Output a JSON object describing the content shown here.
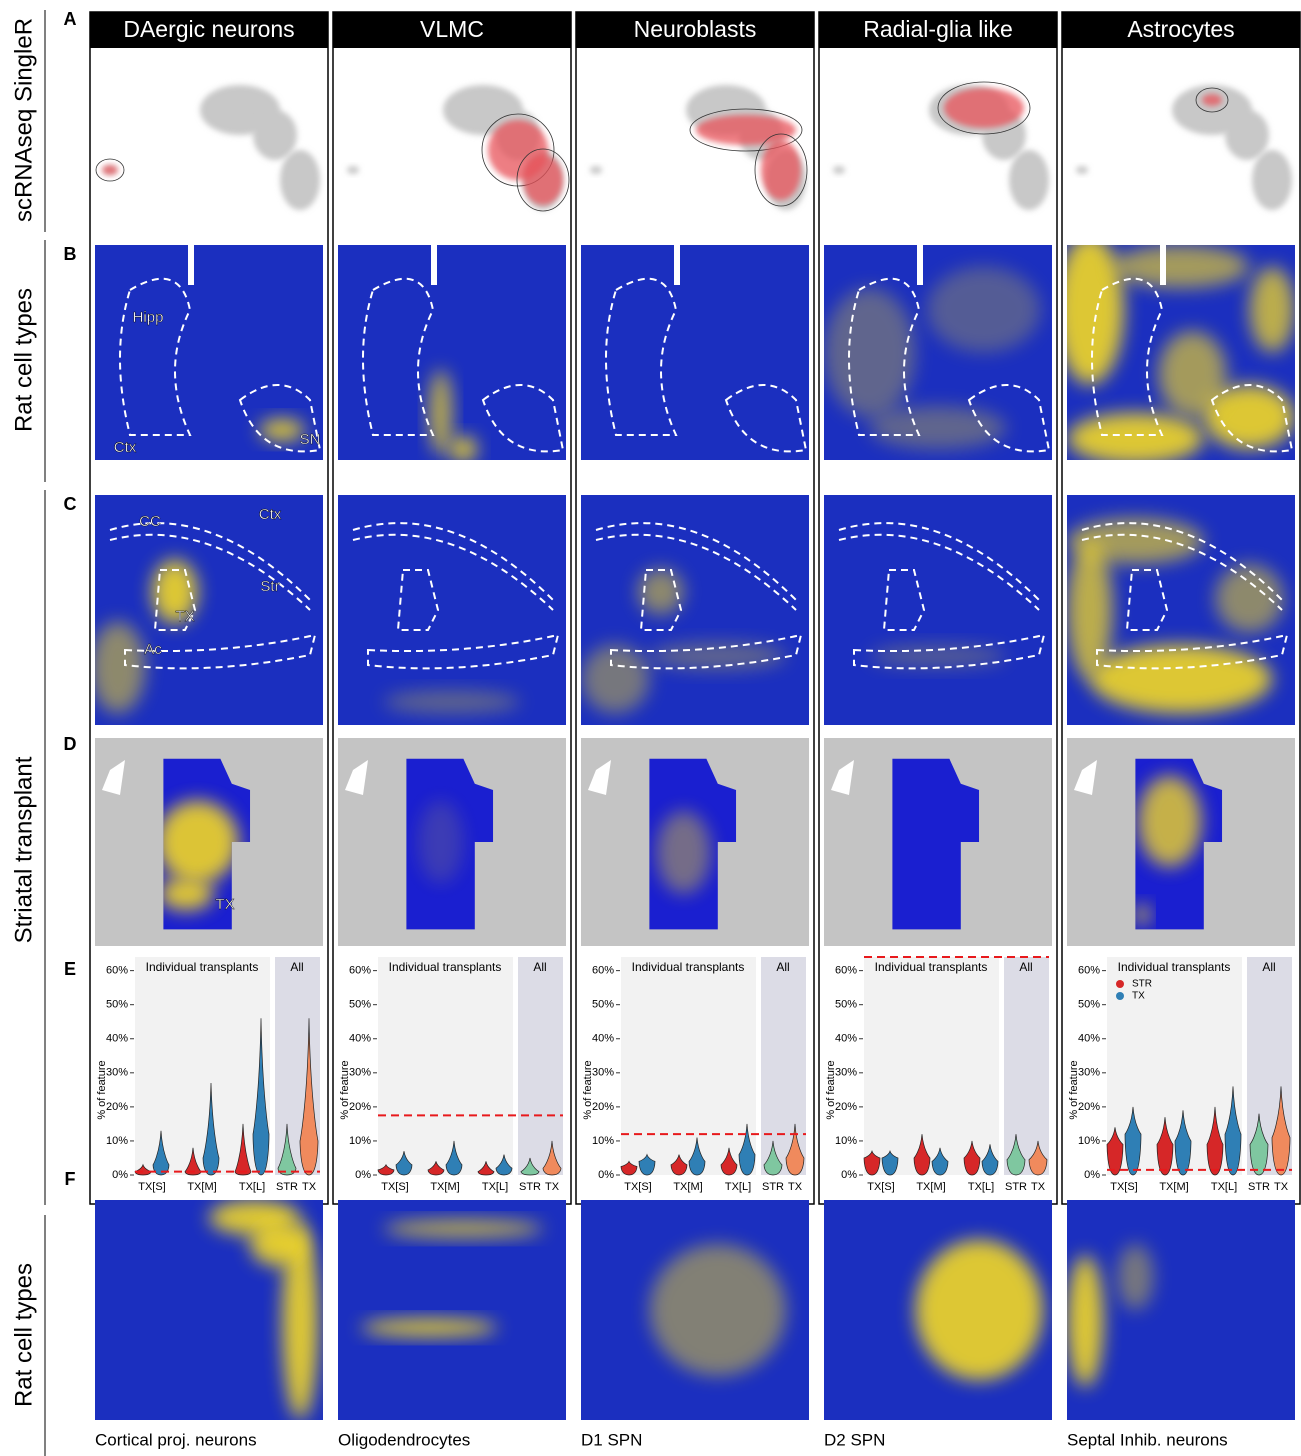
{
  "panels": {
    "columns": [
      "DAergic neurons",
      "VLMC",
      "Neuroblasts",
      "Radial-glia like",
      "Astrocytes"
    ],
    "letters": [
      "A",
      "B",
      "C",
      "D",
      "E",
      "F"
    ],
    "row_labels": [
      "scRNAseq SingleR",
      "Rat cell types",
      "Striatal transplant",
      "Rat cell types"
    ],
    "annotations_b": [
      "Hipp",
      "Ctx",
      "SN"
    ],
    "annotations_c": [
      "CC",
      "Ctx",
      "Str",
      "TX",
      "Ac"
    ],
    "annotation_d": "TX",
    "f_labels": [
      "Cortical proj. neurons",
      "Oligodendrocytes",
      "D1 SPN",
      "D2 SPN",
      "Septal Inhib. neurons"
    ]
  },
  "chart_data": [
    {
      "type": "violin",
      "ylabel": "% of feature",
      "group_label": "Individual transplants",
      "all_label": "All",
      "legend": false,
      "categories": [
        "TX[S]",
        "TX[M]",
        "TX[L]"
      ],
      "series": [
        {
          "name": "STR",
          "color": "#d62728",
          "values": [
            1,
            1,
            1
          ],
          "max": [
            3,
            8,
            15
          ]
        },
        {
          "name": "TX",
          "color": "#2f7fb5",
          "values": [
            3,
            5,
            12
          ],
          "max": [
            13,
            27,
            46
          ]
        }
      ],
      "all_categories": [
        "STR",
        "TX"
      ],
      "all_colors": [
        "#7fc7a0",
        "#f08a5d"
      ],
      "all_values": [
        2,
        10
      ],
      "all_max": [
        15,
        46
      ],
      "threshold": 1,
      "ylim": [
        0,
        64
      ],
      "yticks": [
        {
          "value": 0,
          "label": "0%"
        },
        {
          "value": 10,
          "label": "10%"
        },
        {
          "value": 20,
          "label": "20%"
        },
        {
          "value": 30,
          "label": "30%"
        },
        {
          "value": 40,
          "label": "40%"
        },
        {
          "value": 50,
          "label": "50%"
        },
        {
          "value": 60,
          "label": "60%"
        }
      ]
    },
    {
      "type": "violin",
      "ylabel": "% of feature",
      "group_label": "Individual transplants",
      "all_label": "All",
      "legend": false,
      "categories": [
        "TX[S]",
        "TX[M]",
        "TX[L]"
      ],
      "series": [
        {
          "name": "STR",
          "color": "#d62728",
          "values": [
            1.5,
            1.5,
            1
          ],
          "max": [
            3,
            4,
            4
          ]
        },
        {
          "name": "TX",
          "color": "#2f7fb5",
          "values": [
            3,
            3,
            2
          ],
          "max": [
            7,
            10,
            6
          ]
        }
      ],
      "all_categories": [
        "STR",
        "TX"
      ],
      "all_colors": [
        "#7fc7a0",
        "#f08a5d"
      ],
      "all_values": [
        1,
        2
      ],
      "all_max": [
        5,
        10
      ],
      "threshold": 17.5,
      "ylim": [
        0,
        64
      ],
      "yticks": [
        {
          "value": 0,
          "label": "0%"
        },
        {
          "value": 10,
          "label": "10%"
        },
        {
          "value": 20,
          "label": "20%"
        },
        {
          "value": 30,
          "label": "30%"
        },
        {
          "value": 40,
          "label": "40%"
        },
        {
          "value": 50,
          "label": "50%"
        },
        {
          "value": 60,
          "label": "60%"
        }
      ]
    },
    {
      "type": "violin",
      "ylabel": "% of feature",
      "group_label": "Individual transplants",
      "all_label": "All",
      "legend": false,
      "categories": [
        "TX[S]",
        "TX[M]",
        "TX[L]"
      ],
      "series": [
        {
          "name": "STR",
          "color": "#d62728",
          "values": [
            2.5,
            3,
            3
          ],
          "max": [
            4,
            6,
            8
          ]
        },
        {
          "name": "TX",
          "color": "#2f7fb5",
          "values": [
            4,
            4,
            6
          ],
          "max": [
            6,
            11,
            15
          ]
        }
      ],
      "all_categories": [
        "STR",
        "TX"
      ],
      "all_colors": [
        "#7fc7a0",
        "#f08a5d"
      ],
      "all_values": [
        3,
        5
      ],
      "all_max": [
        10,
        15
      ],
      "threshold": 12,
      "ylim": [
        0,
        64
      ],
      "yticks": [
        {
          "value": 0,
          "label": "0%"
        },
        {
          "value": 10,
          "label": "10%"
        },
        {
          "value": 20,
          "label": "20%"
        },
        {
          "value": 30,
          "label": "30%"
        },
        {
          "value": 40,
          "label": "40%"
        },
        {
          "value": 50,
          "label": "50%"
        },
        {
          "value": 60,
          "label": "60%"
        }
      ]
    },
    {
      "type": "violin",
      "ylabel": "% of feature",
      "group_label": "Individual transplants",
      "all_label": "All",
      "legend": false,
      "categories": [
        "TX[S]",
        "TX[M]",
        "TX[L]"
      ],
      "series": [
        {
          "name": "STR",
          "color": "#d62728",
          "values": [
            5,
            5,
            5
          ],
          "max": [
            7,
            12,
            10
          ]
        },
        {
          "name": "TX",
          "color": "#2f7fb5",
          "values": [
            5,
            4,
            4
          ],
          "max": [
            7,
            8,
            9
          ]
        }
      ],
      "all_categories": [
        "STR",
        "TX"
      ],
      "all_colors": [
        "#7fc7a0",
        "#f08a5d"
      ],
      "all_values": [
        4.5,
        4.5
      ],
      "all_max": [
        12,
        10
      ],
      "threshold": 64,
      "ylim": [
        0,
        64
      ],
      "yticks": [
        {
          "value": 0,
          "label": "0%"
        },
        {
          "value": 10,
          "label": "10%"
        },
        {
          "value": 20,
          "label": "20%"
        },
        {
          "value": 30,
          "label": "30%"
        },
        {
          "value": 40,
          "label": "40%"
        },
        {
          "value": 50,
          "label": "50%"
        },
        {
          "value": 60,
          "label": "60%"
        }
      ]
    },
    {
      "type": "violin",
      "ylabel": "% of feature",
      "group_label": "Individual transplants",
      "all_label": "All",
      "legend": true,
      "categories": [
        "TX[S]",
        "TX[M]",
        "TX[L]"
      ],
      "series": [
        {
          "name": "STR",
          "color": "#d62728",
          "values": [
            9,
            9,
            9
          ],
          "max": [
            14,
            17,
            20
          ]
        },
        {
          "name": "TX",
          "color": "#2f7fb5",
          "values": [
            12,
            10,
            12
          ],
          "max": [
            20,
            19,
            26
          ]
        }
      ],
      "all_categories": [
        "STR",
        "TX"
      ],
      "all_colors": [
        "#7fc7a0",
        "#f08a5d"
      ],
      "all_values": [
        9,
        11
      ],
      "all_max": [
        18,
        26
      ],
      "threshold": 1.5,
      "ylim": [
        0,
        64
      ],
      "yticks": [
        {
          "value": 0,
          "label": "0%"
        },
        {
          "value": 10,
          "label": "10%"
        },
        {
          "value": 20,
          "label": "20%"
        },
        {
          "value": 30,
          "label": "30%"
        },
        {
          "value": 40,
          "label": "40%"
        },
        {
          "value": 50,
          "label": "50%"
        },
        {
          "value": 60,
          "label": "60%"
        }
      ]
    }
  ]
}
